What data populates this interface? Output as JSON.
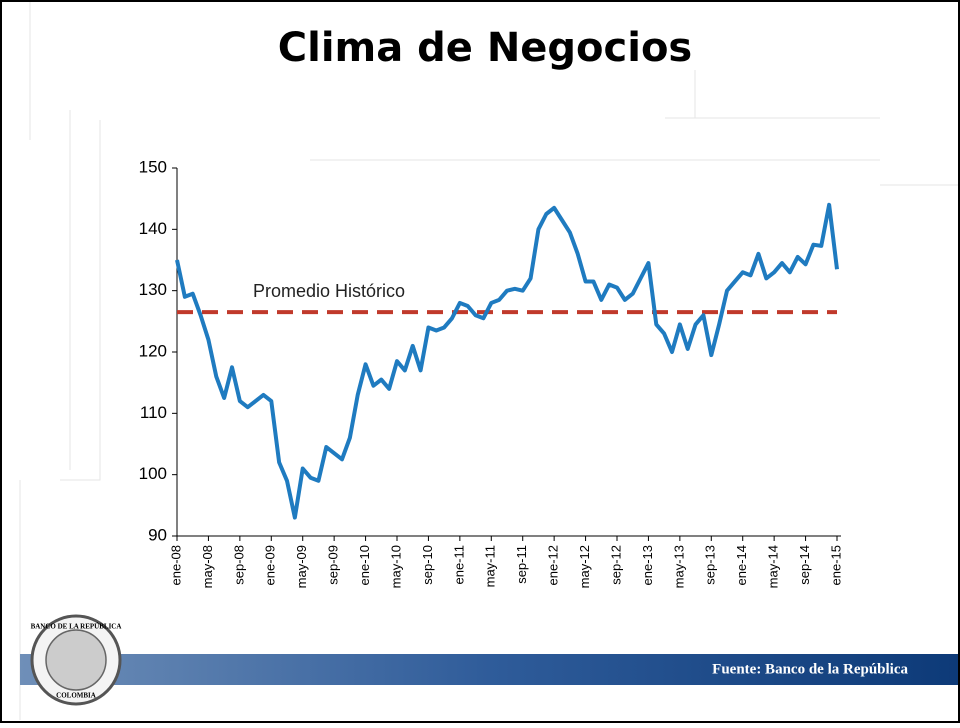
{
  "chart_data": {
    "type": "line",
    "title": "Clima de Negocios",
    "categories": [
      "ene-08",
      null,
      null,
      null,
      "may-08",
      null,
      null,
      null,
      "sep-08",
      null,
      null,
      null,
      "ene-09",
      null,
      null,
      null,
      "may-09",
      null,
      null,
      null,
      "sep-09",
      null,
      null,
      null,
      "ene-10",
      null,
      null,
      null,
      "may-10",
      null,
      null,
      null,
      "sep-10",
      null,
      null,
      null,
      "ene-11",
      null,
      null,
      null,
      "may-11",
      null,
      null,
      null,
      "sep-11",
      null,
      null,
      null,
      "ene-12",
      null,
      null,
      null,
      "may-12",
      null,
      null,
      null,
      "sep-12",
      null,
      null,
      null,
      "ene-13",
      null,
      null,
      null,
      "may-13",
      null,
      null,
      null,
      "sep-13",
      null,
      null,
      null,
      "ene-14",
      null,
      null,
      null,
      "may-14",
      null,
      null,
      null,
      "sep-14",
      null,
      null,
      null,
      "ene-15"
    ],
    "series": [
      {
        "color": "#1f7bc0",
        "values": [
          135,
          129,
          129.5,
          126,
          122,
          116,
          112.5,
          117.5,
          112,
          111,
          112,
          113,
          112,
          102,
          99,
          93,
          101,
          99.5,
          99,
          104.5,
          103.5,
          102.5,
          106,
          113,
          118,
          114.5,
          115.5,
          114,
          118.5,
          117,
          121,
          117,
          124,
          123.5,
          124,
          125.5,
          128,
          127.5,
          126,
          125.5,
          128,
          128.5,
          130,
          130.3,
          130,
          132,
          140,
          142.5,
          143.5,
          141.5,
          139.5,
          136,
          131.5,
          131.5,
          128.5,
          131,
          130.5,
          128.5,
          129.5,
          132,
          134.5,
          124.5,
          123,
          120,
          124.5,
          120.5,
          124.5,
          126,
          119.5,
          124.5,
          130,
          131.5,
          133,
          132.5,
          136,
          132,
          133,
          134.5,
          133,
          135.5,
          134.3,
          137.5,
          137.3,
          144,
          133.5
        ]
      }
    ],
    "reference_line": {
      "label": "Promedio Histórico",
      "value": 126.5,
      "color": "#c0392b"
    },
    "ylim": [
      90,
      150
    ],
    "yticks": [
      90,
      100,
      110,
      120,
      130,
      140,
      150
    ],
    "source": "Fuente: Banco de la República",
    "logo_text": [
      "BANCO DE LA REPÚBLICA",
      "COLOMBIA"
    ]
  }
}
